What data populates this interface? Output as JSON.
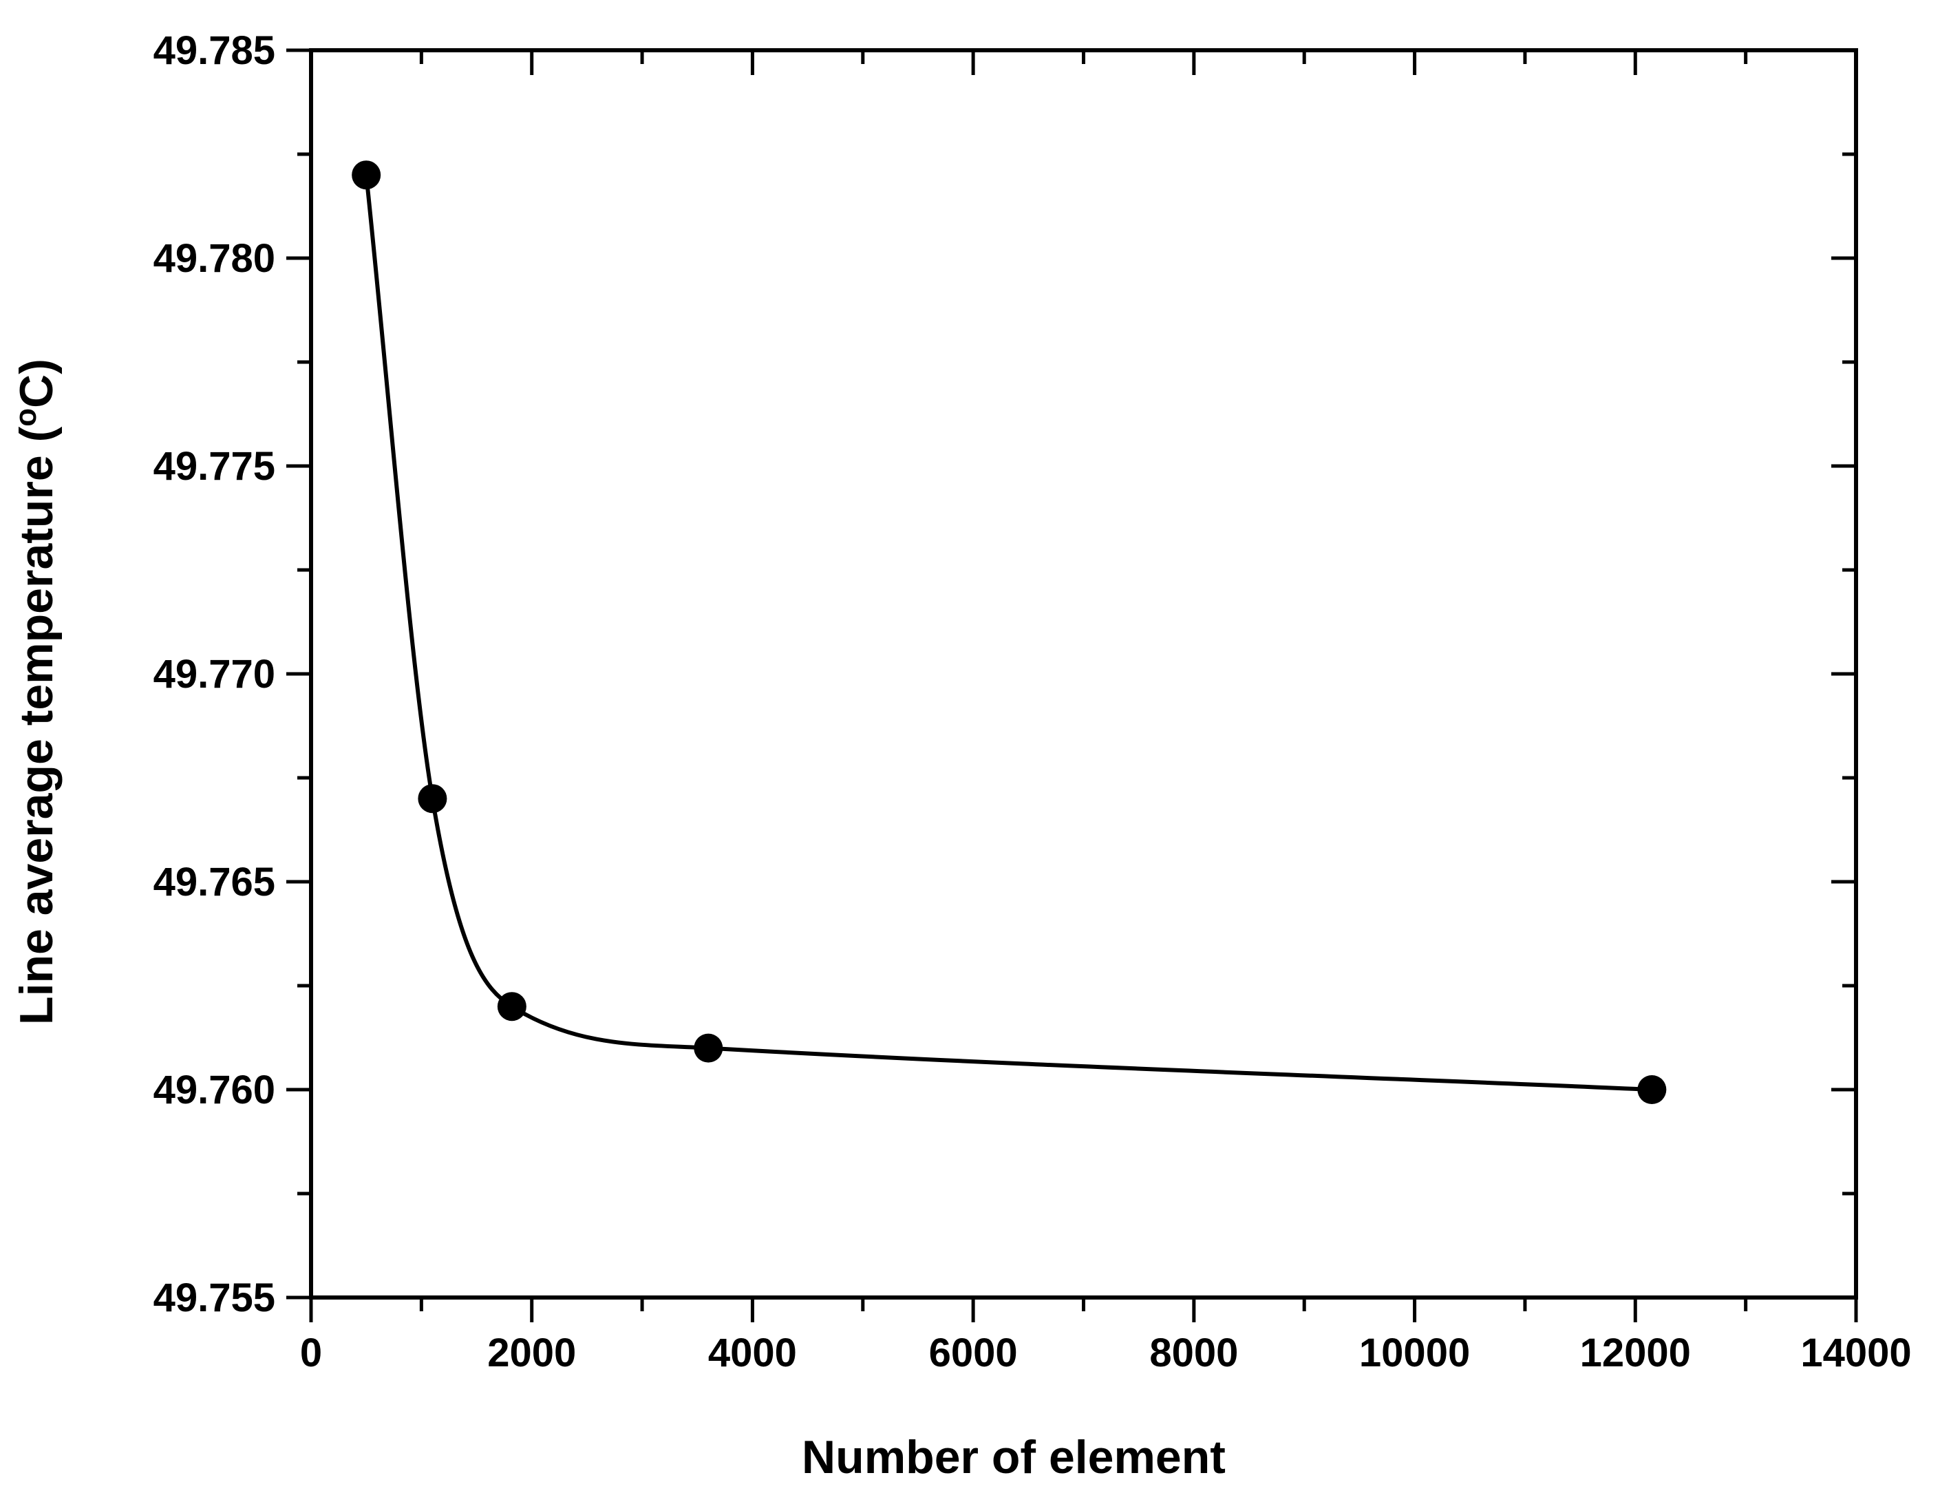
{
  "chart_data": {
    "type": "scatter",
    "title": "",
    "xlabel": "Number of element",
    "ylabel": "Line average temperature (",
    "ylabel_unit_degree": "o",
    "ylabel_unit_letter": "C)",
    "xlim": [
      0,
      14000
    ],
    "ylim": [
      49.755,
      49.785
    ],
    "x_ticks": [
      0,
      2000,
      4000,
      6000,
      8000,
      10000,
      12000,
      14000
    ],
    "x_tick_labels": [
      "0",
      "2000",
      "4000",
      "6000",
      "8000",
      "10000",
      "12000",
      "14000"
    ],
    "x_minor_step": 1000,
    "y_ticks": [
      49.755,
      49.76,
      49.765,
      49.77,
      49.775,
      49.78,
      49.785
    ],
    "y_tick_labels": [
      "49.755",
      "49.760",
      "49.765",
      "49.770",
      "49.775",
      "49.780",
      "49.785"
    ],
    "y_minor_step": 0.0025,
    "grid": false,
    "legend": "none",
    "series": [
      {
        "x": [
          500,
          1100,
          1820,
          3600,
          12150
        ],
        "y": [
          49.782,
          49.767,
          49.762,
          49.761,
          49.76
        ],
        "color": "#000000",
        "marker": "circle",
        "line": "smooth"
      }
    ]
  }
}
